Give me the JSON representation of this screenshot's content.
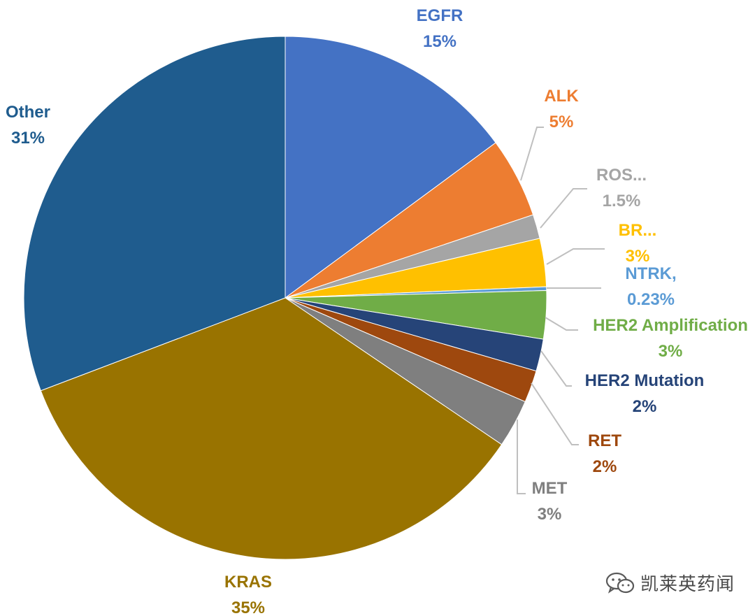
{
  "chart_data": {
    "type": "pie",
    "start_angle_deg": 0,
    "direction": "clockwise",
    "slices": [
      {
        "name": "EGFR",
        "label": "EGFR",
        "value_label": "15%",
        "value": 15,
        "color": "#4472C4"
      },
      {
        "name": "ALK",
        "label": "ALK",
        "value_label": "5%",
        "value": 5,
        "color": "#ED7D31"
      },
      {
        "name": "ROS1",
        "label": "ROS...",
        "value_label": "1.5%",
        "value": 1.5,
        "color": "#A5A5A5"
      },
      {
        "name": "BRAF",
        "label": "BR...",
        "value_label": "3%",
        "value": 3,
        "color": "#FFC000"
      },
      {
        "name": "NTRK",
        "label": "NTRK,",
        "value_label": "0.23%",
        "value": 0.23,
        "color": "#5B9BD5"
      },
      {
        "name": "HER2 Amplification",
        "label": "HER2 Amplification",
        "value_label": "3%",
        "value": 3,
        "color": "#70AD47"
      },
      {
        "name": "HER2 Mutation",
        "label": "HER2 Mutation",
        "value_label": "2%",
        "value": 2,
        "color": "#264478"
      },
      {
        "name": "RET",
        "label": "RET",
        "value_label": "2%",
        "value": 2,
        "color": "#9E480E"
      },
      {
        "name": "MET",
        "label": "MET",
        "value_label": "3%",
        "value": 3,
        "color": "#7F7F7F"
      },
      {
        "name": "KRAS",
        "label": "KRAS",
        "value_label": "35%",
        "value": 35,
        "color": "#997300"
      },
      {
        "name": "Other",
        "label": "Other",
        "value_label": "31%",
        "value": 31,
        "color": "#1F5C8E"
      }
    ],
    "label_colors": {
      "EGFR": "#4472C4",
      "ALK": "#ED7D31",
      "ROS1": "#A5A5A5",
      "BRAF": "#FFC000",
      "NTRK": "#5B9BD5",
      "HER2 Amplification": "#70AD47",
      "HER2 Mutation": "#264478",
      "RET": "#9E480E",
      "MET": "#7F7F7F",
      "KRAS": "#997300",
      "Other": "#1F5C8E"
    },
    "leader_color": "#BFBFBF"
  },
  "watermark": {
    "text": "凯莱英药闻",
    "icon": "wechat-icon",
    "color": "#4a4a4a"
  }
}
